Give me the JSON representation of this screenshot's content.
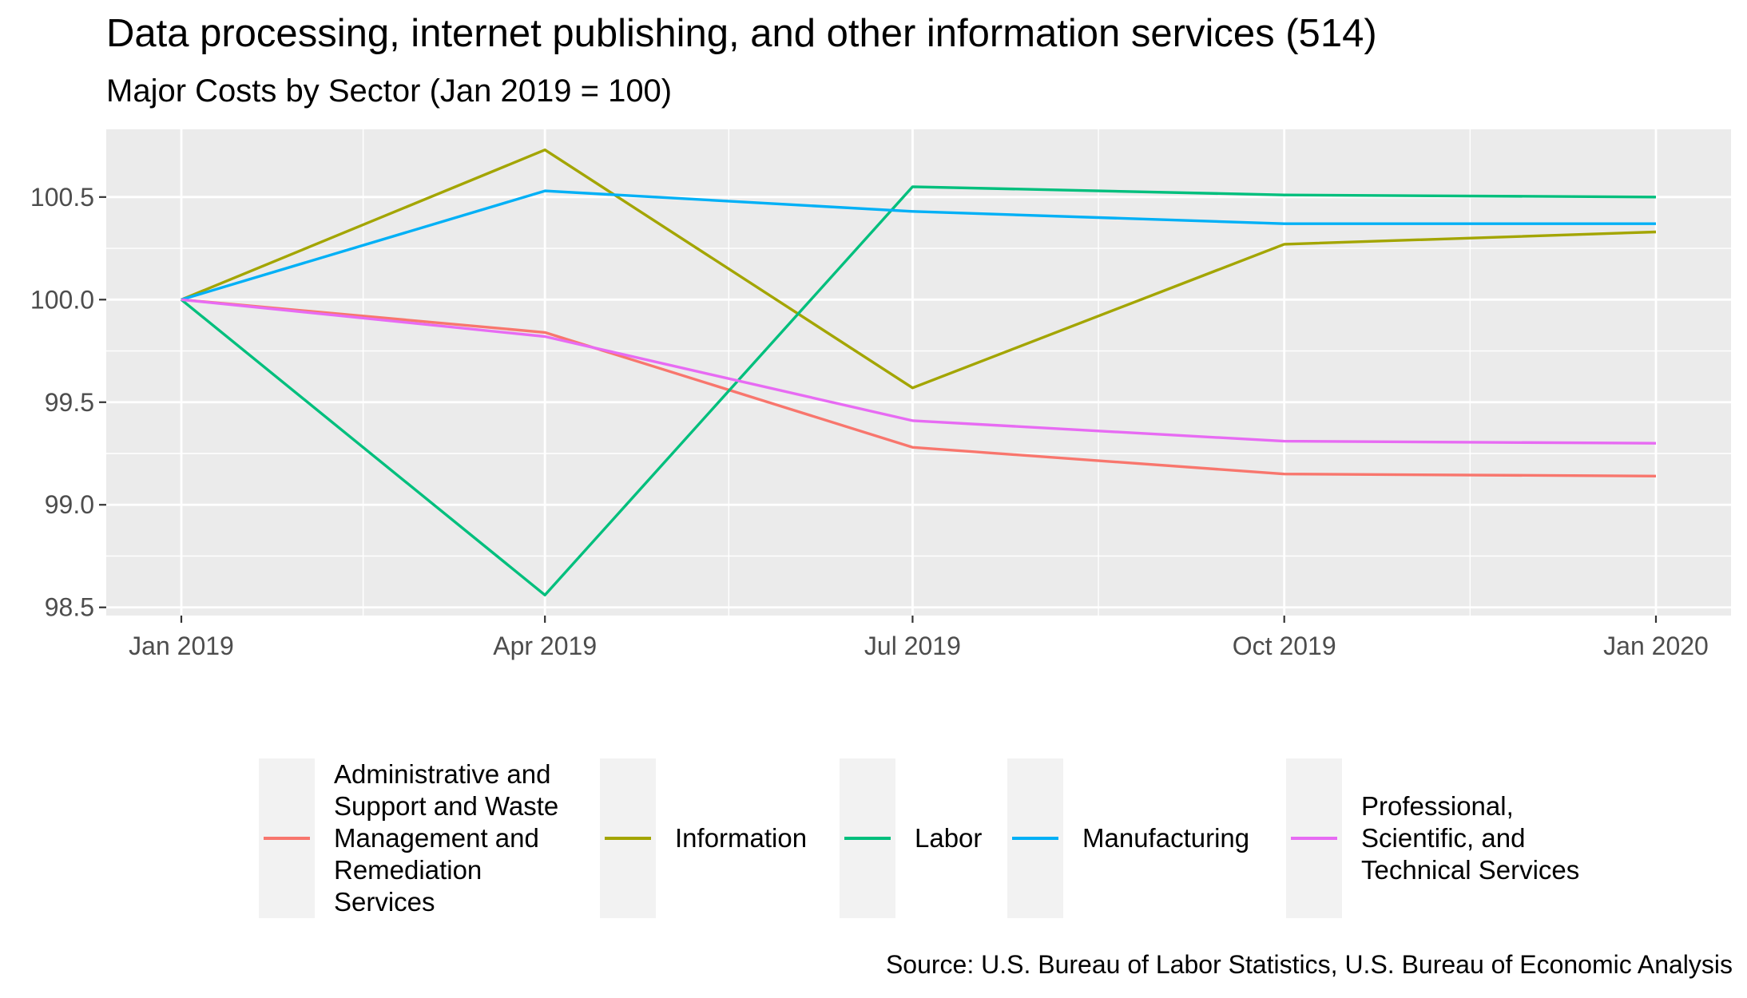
{
  "chart_data": {
    "type": "line",
    "title": "Data processing, internet publishing, and other information services (514)",
    "subtitle": "Major Costs by Sector (Jan 2019 = 100)",
    "caption": "Source: U.S. Bureau of Labor Statistics, U.S. Bureau of Economic Analysis",
    "xlabel": "",
    "ylabel": "",
    "x": [
      "2019-01-01",
      "2019-04-01",
      "2019-07-01",
      "2019-10-01",
      "2020-01-01"
    ],
    "x_tick_labels": [
      "Jan 2019",
      "Apr 2019",
      "Jul 2019",
      "Oct 2019",
      "Jan 2020"
    ],
    "y_ticks": [
      98.5,
      99.0,
      99.5,
      100.0,
      100.5
    ],
    "y_tick_labels": [
      "98.5",
      "99.0",
      "99.5",
      "100.0",
      "100.5"
    ],
    "ylim": [
      98.46,
      100.83
    ],
    "grid": true,
    "legend_position": "bottom",
    "series": [
      {
        "name": "Administrative and Support and Waste Management and Remediation Services",
        "color": "#F8766D",
        "values": [
          100.0,
          99.84,
          99.28,
          99.15,
          99.14
        ]
      },
      {
        "name": "Information",
        "color": "#A3A500",
        "values": [
          100.0,
          100.73,
          99.57,
          100.27,
          100.33
        ]
      },
      {
        "name": "Labor",
        "color": "#00BF7D",
        "values": [
          100.0,
          98.56,
          100.55,
          100.51,
          100.5
        ]
      },
      {
        "name": "Manufacturing",
        "color": "#00B0F6",
        "values": [
          100.0,
          100.53,
          100.43,
          100.37,
          100.37
        ]
      },
      {
        "name": "Professional, Scientific, and Technical Services",
        "color": "#E76BF3",
        "values": [
          100.0,
          99.82,
          99.41,
          99.31,
          99.3
        ]
      }
    ],
    "legend_labels": [
      "Administrative and\nSupport and Waste\nManagement and\nRemediation\nServices",
      "Information",
      "Labor",
      "Manufacturing",
      "Professional,\nScientific, and\nTechnical Services"
    ]
  }
}
